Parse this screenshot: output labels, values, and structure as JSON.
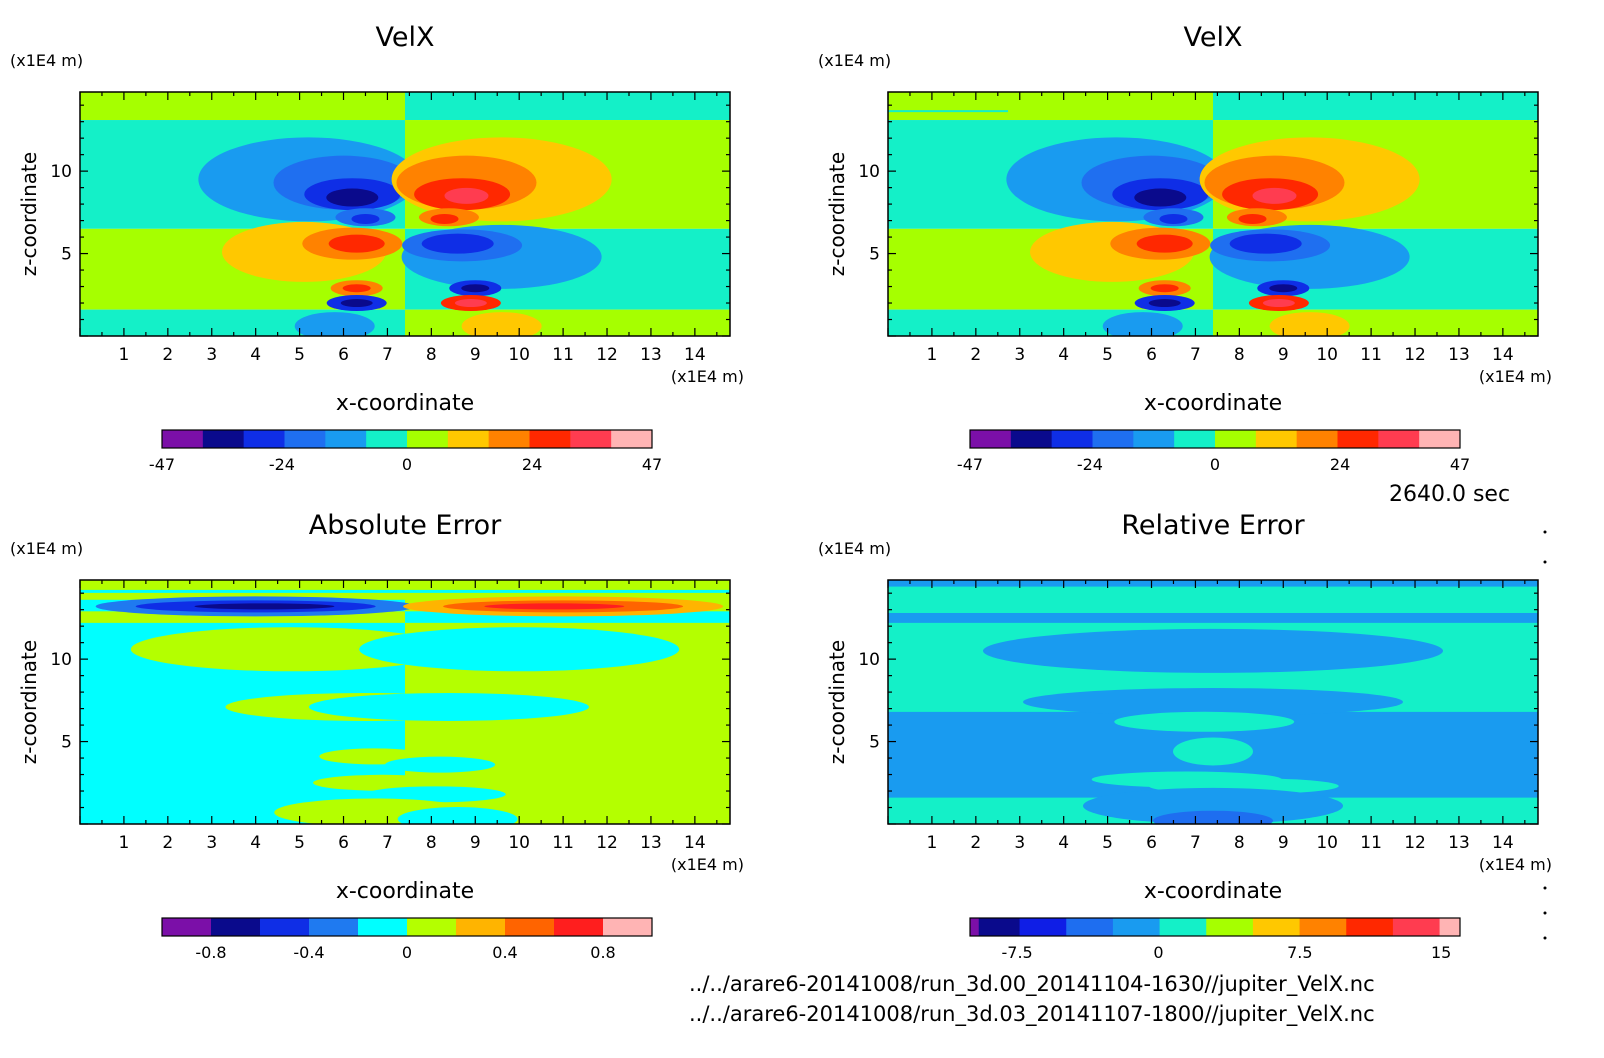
{
  "timestamp": "2640.0 sec",
  "files": [
    "../../arare6-20141008/run_3d.00_20141104-1630//jupiter_VelX.nc",
    "../../arare6-20141008/run_3d.03_20141107-1800//jupiter_VelX.nc"
  ],
  "colors": {
    "velx": [
      "#7b0fa8",
      "#0a0a8c",
      "#0f2ee6",
      "#1f6ff0",
      "#199bf0",
      "#14f0c8",
      "#a6ff00",
      "#ffc800",
      "#ff8200",
      "#ff2800",
      "#ff3c50",
      "#ffb4b4"
    ],
    "abs": [
      "#7b0fa8",
      "#0a0a8c",
      "#0f2ee6",
      "#1f7af0",
      "#00ffff",
      "#b4ff00",
      "#ffb400",
      "#ff6400",
      "#ff1e1e",
      "#ffb4b4"
    ],
    "rel": [
      "#7b0fa8",
      "#0a0a8c",
      "#0f1ee6",
      "#1e6ef0",
      "#199bf0",
      "#14f0c8",
      "#a6ff00",
      "#ffc800",
      "#ff8200",
      "#ff2800",
      "#ff3c50",
      "#ffb4b4"
    ]
  },
  "chart_data": [
    {
      "type": "heatmap",
      "id": "velx-1",
      "title": "VelX",
      "xlabel": "x-coordinate",
      "ylabel": "z-coordinate",
      "x_unit": "(x1E4 m)",
      "y_unit": "(x1E4 m)",
      "xticks": [
        1,
        2,
        3,
        4,
        5,
        6,
        7,
        8,
        9,
        10,
        11,
        12,
        13,
        14
      ],
      "yticks": [
        5,
        10
      ],
      "xlim": [
        0,
        14.8
      ],
      "ylim": [
        0,
        14.8
      ],
      "colorbar": {
        "ticks": [
          "-47",
          "-24",
          "0",
          "24",
          "47"
        ],
        "range": [
          -47,
          47
        ]
      }
    },
    {
      "type": "heatmap",
      "id": "velx-2",
      "title": "VelX",
      "xlabel": "x-coordinate",
      "ylabel": "z-coordinate",
      "x_unit": "(x1E4 m)",
      "y_unit": "(x1E4 m)",
      "xticks": [
        1,
        2,
        3,
        4,
        5,
        6,
        7,
        8,
        9,
        10,
        11,
        12,
        13,
        14
      ],
      "yticks": [
        5,
        10
      ],
      "xlim": [
        0,
        14.8
      ],
      "ylim": [
        0,
        14.8
      ],
      "colorbar": {
        "ticks": [
          "-47",
          "-24",
          "0",
          "24",
          "47"
        ],
        "range": [
          -47,
          47
        ]
      }
    },
    {
      "type": "heatmap",
      "id": "abs-error",
      "title": "Absolute Error",
      "xlabel": "x-coordinate",
      "ylabel": "z-coordinate",
      "x_unit": "(x1E4 m)",
      "y_unit": "(x1E4 m)",
      "xticks": [
        1,
        2,
        3,
        4,
        5,
        6,
        7,
        8,
        9,
        10,
        11,
        12,
        13,
        14
      ],
      "yticks": [
        5,
        10
      ],
      "xlim": [
        0,
        14.8
      ],
      "ylim": [
        0,
        14.8
      ],
      "colorbar": {
        "ticks": [
          "-0.8",
          "-0.4",
          "0",
          "0.4",
          "0.8"
        ],
        "range": [
          -1,
          1
        ]
      }
    },
    {
      "type": "heatmap",
      "id": "rel-error",
      "title": "Relative Error",
      "xlabel": "x-coordinate",
      "ylabel": "z-coordinate",
      "x_unit": "(x1E4 m)",
      "y_unit": "(x1E4 m)",
      "xticks": [
        1,
        2,
        3,
        4,
        5,
        6,
        7,
        8,
        9,
        10,
        11,
        12,
        13,
        14
      ],
      "yticks": [
        5,
        10
      ],
      "xlim": [
        0,
        14.8
      ],
      "ylim": [
        0,
        14.8
      ],
      "colorbar": {
        "ticks": [
          "-7.5",
          "0",
          "7.5",
          "15"
        ],
        "range": [
          -10,
          16
        ]
      }
    }
  ]
}
